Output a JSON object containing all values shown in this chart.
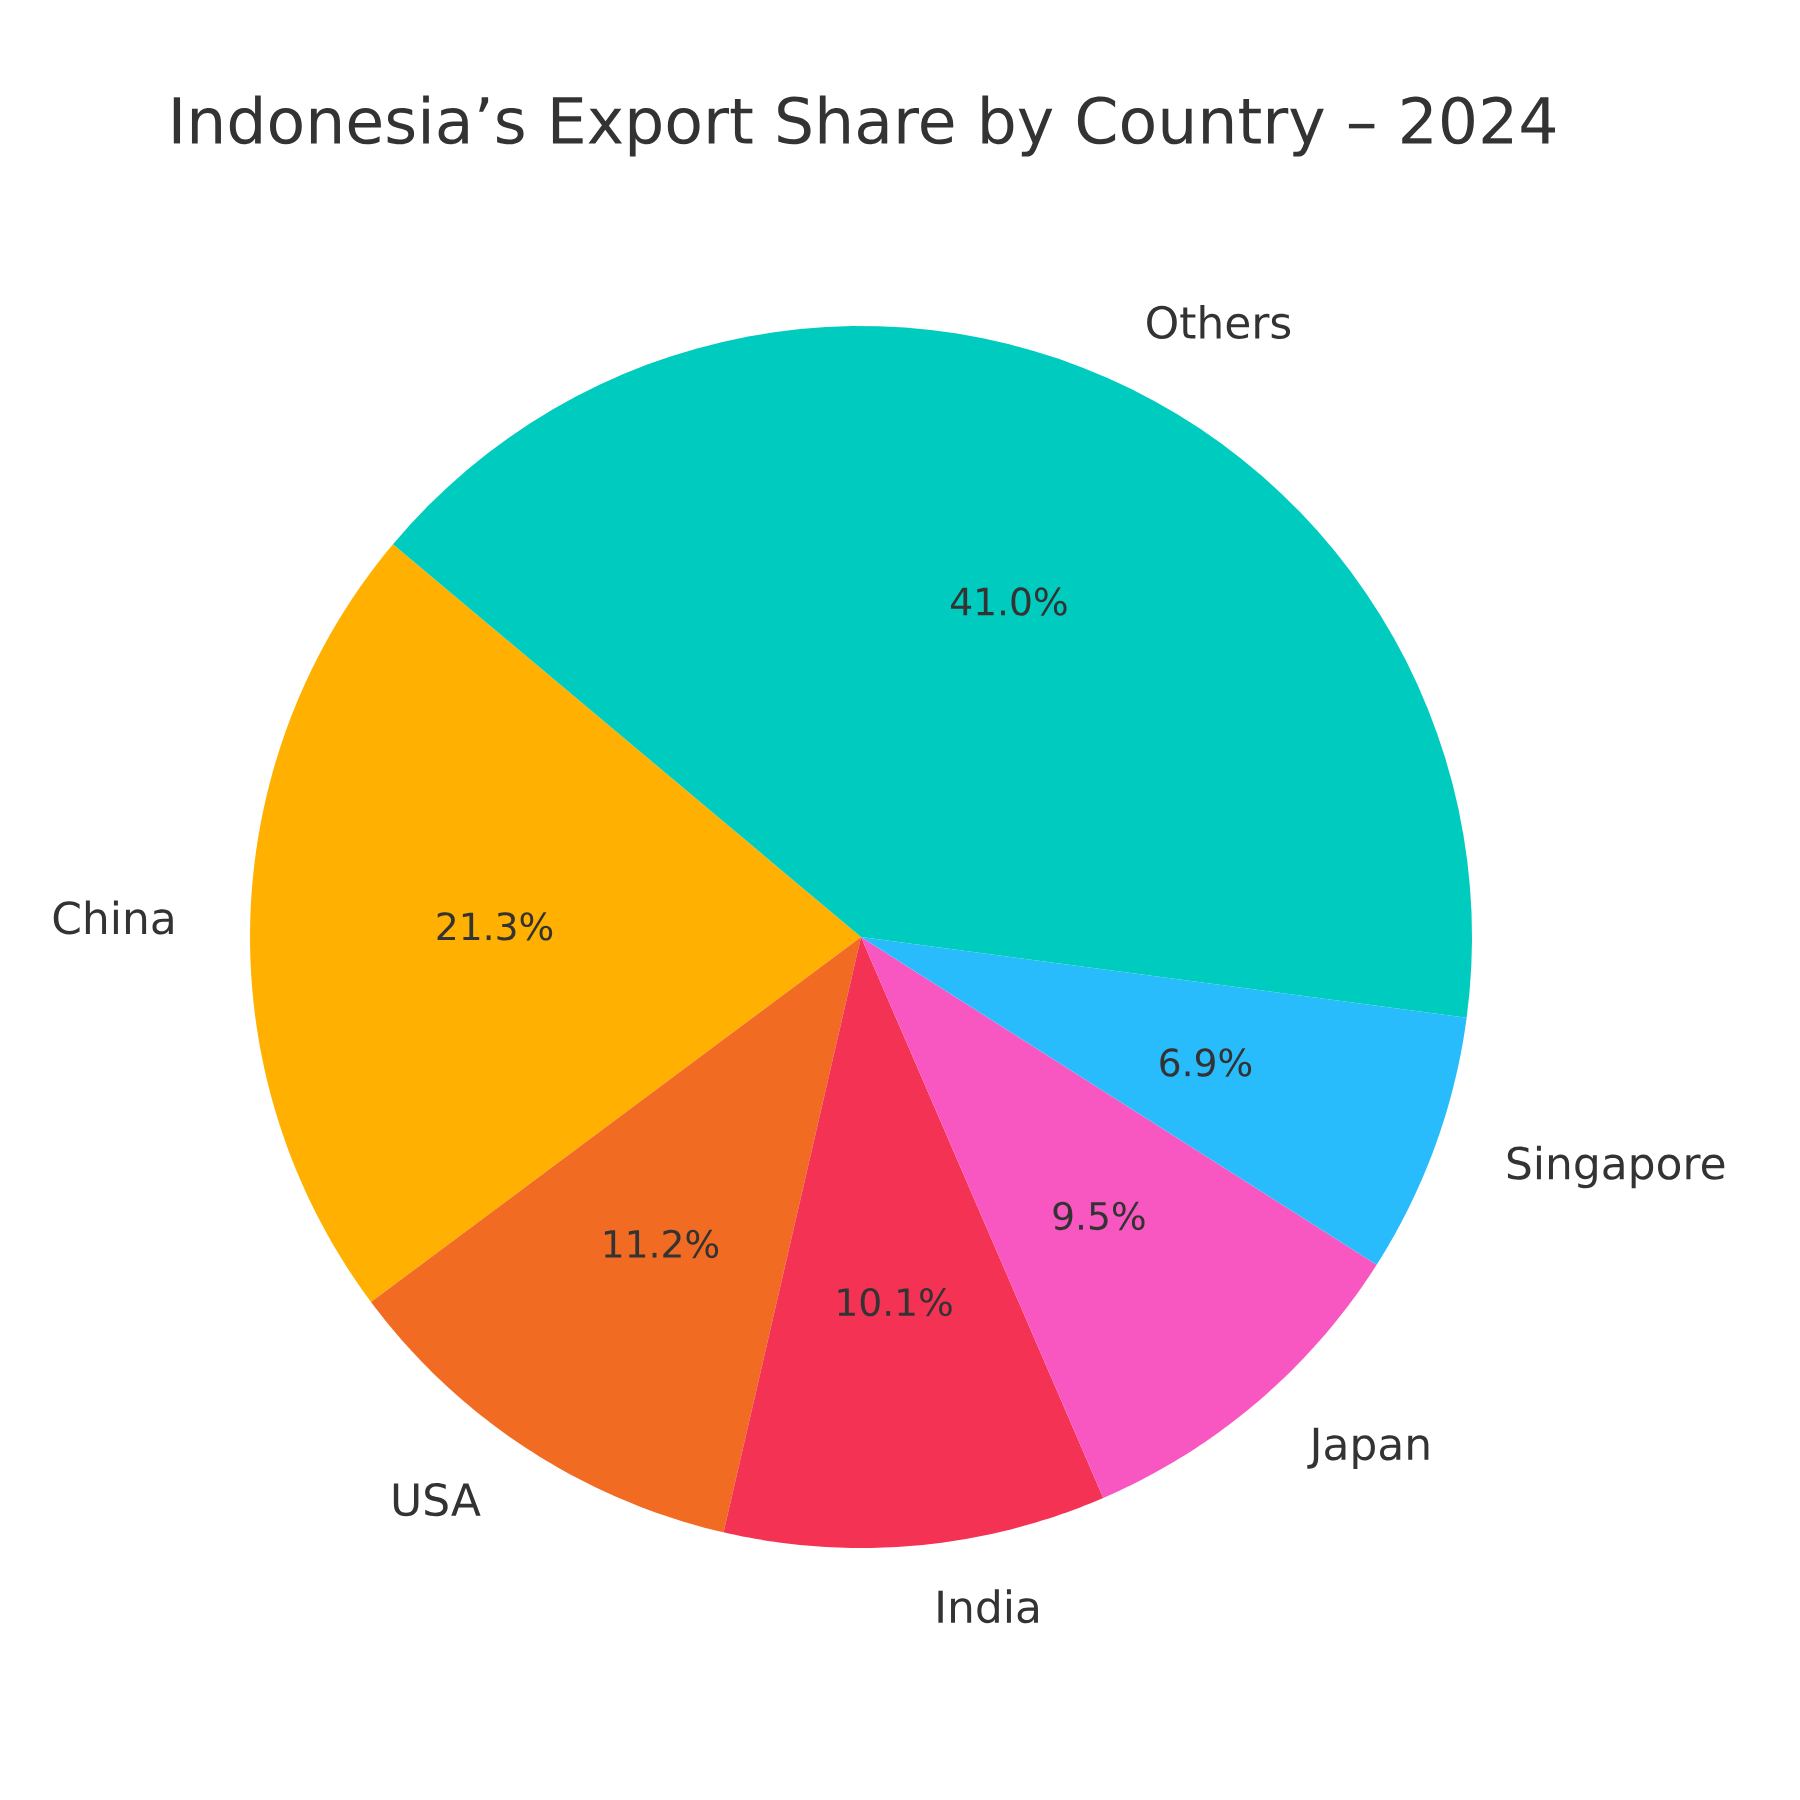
{
  "chart_data": {
    "type": "pie",
    "title": "Indonesia’s Export Share by Country – 2024",
    "categories": [
      "China",
      "USA",
      "India",
      "Japan",
      "Singapore",
      "Others"
    ],
    "values": [
      21.3,
      11.2,
      10.1,
      9.5,
      6.9,
      41.0
    ],
    "colors": [
      "#ffb000",
      "#f26b22",
      "#f43254",
      "#f857c1",
      "#29bcfd",
      "#00cbbf"
    ],
    "value_labels": [
      "21.3%",
      "11.2%",
      "10.1%",
      "9.5%",
      "6.9%",
      "41.0%"
    ]
  }
}
